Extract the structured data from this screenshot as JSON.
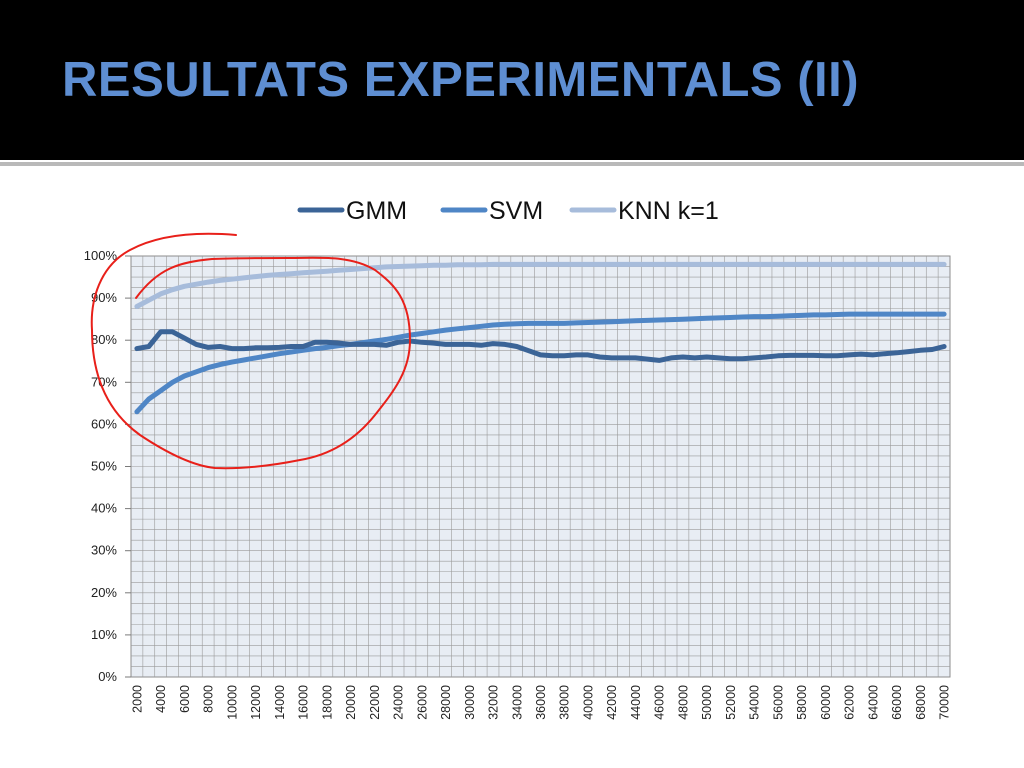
{
  "slide": {
    "title": "RESULTATS EXPERIMENTALS (II)"
  },
  "colors": {
    "header_bg": "#000000",
    "title": "#5e8ed2",
    "gmm": "#3b6497",
    "svm": "#4f86c6",
    "knn": "#a7bcdb",
    "plot_bg": "#e8edf4",
    "grid": "#9a9a9a",
    "annotation": "#e8201a"
  },
  "chart_data": {
    "type": "line",
    "title": "",
    "xlabel": "",
    "ylabel": "",
    "legend_position": "top-center",
    "grid": true,
    "ylim": [
      0,
      100
    ],
    "yticks": [
      "0%",
      "10%",
      "20%",
      "30%",
      "40%",
      "50%",
      "60%",
      "70%",
      "80%",
      "90%",
      "100%"
    ],
    "categories": [
      "2000",
      "3000",
      "4000",
      "5000",
      "6000",
      "7000",
      "8000",
      "9000",
      "10000",
      "11000",
      "12000",
      "13000",
      "14000",
      "15000",
      "16000",
      "17000",
      "18000",
      "19000",
      "20000",
      "21000",
      "22000",
      "23000",
      "24000",
      "25000",
      "26000",
      "27000",
      "28000",
      "29000",
      "30000",
      "31000",
      "32000",
      "33000",
      "34000",
      "35000",
      "36000",
      "37000",
      "38000",
      "39000",
      "40000",
      "41000",
      "42000",
      "43000",
      "44000",
      "45000",
      "46000",
      "47000",
      "48000",
      "49000",
      "50000",
      "51000",
      "52000",
      "53000",
      "54000",
      "55000",
      "56000",
      "57000",
      "58000",
      "59000",
      "60000",
      "61000",
      "62000",
      "63000",
      "64000",
      "65000",
      "66000",
      "67000",
      "68000",
      "69000",
      "70000"
    ],
    "xtick_labels": [
      "2000",
      "4000",
      "6000",
      "8000",
      "10000",
      "12000",
      "14000",
      "16000",
      "18000",
      "20000",
      "22000",
      "24000",
      "26000",
      "28000",
      "30000",
      "32000",
      "34000",
      "36000",
      "38000",
      "40000",
      "42000",
      "44000",
      "46000",
      "48000",
      "50000",
      "52000",
      "54000",
      "56000",
      "58000",
      "60000",
      "62000",
      "64000",
      "66000",
      "68000",
      "70000"
    ],
    "series": [
      {
        "name": "GMM",
        "values": [
          78,
          78.5,
          82,
          82,
          80.5,
          79,
          78.3,
          78.5,
          78,
          78,
          78.2,
          78.2,
          78.3,
          78.5,
          78.5,
          79.5,
          79.5,
          79.3,
          79,
          79,
          79,
          78.8,
          79.5,
          79.8,
          79.5,
          79.3,
          79,
          79,
          79,
          78.8,
          79.2,
          79,
          78.5,
          77.5,
          76.5,
          76.3,
          76.3,
          76.5,
          76.5,
          76,
          75.8,
          75.8,
          75.8,
          75.5,
          75.2,
          75.8,
          76,
          75.8,
          76,
          75.8,
          75.6,
          75.6,
          75.8,
          76,
          76.3,
          76.4,
          76.4,
          76.4,
          76.3,
          76.3,
          76.5,
          76.7,
          76.5,
          76.8,
          77,
          77.3,
          77.6,
          77.8,
          78.5
        ]
      },
      {
        "name": "SVM",
        "values": [
          63,
          66,
          68,
          70,
          71.5,
          72.5,
          73.5,
          74.2,
          74.8,
          75.3,
          75.8,
          76.3,
          76.8,
          77.2,
          77.6,
          78,
          78.3,
          78.7,
          79,
          79.4,
          79.8,
          80.2,
          80.7,
          81.2,
          81.6,
          82,
          82.4,
          82.7,
          83,
          83.3,
          83.6,
          83.8,
          83.9,
          84,
          84,
          84,
          84,
          84.1,
          84.2,
          84.3,
          84.4,
          84.5,
          84.6,
          84.7,
          84.8,
          84.9,
          85,
          85.1,
          85.2,
          85.3,
          85.4,
          85.5,
          85.6,
          85.6,
          85.7,
          85.8,
          85.9,
          86,
          86,
          86.1,
          86.2,
          86.2,
          86.2,
          86.2,
          86.2,
          86.2,
          86.2,
          86.2,
          86.2
        ]
      },
      {
        "name": "KNN k=1",
        "values": [
          88,
          89.5,
          91,
          92,
          92.8,
          93.3,
          93.8,
          94.2,
          94.5,
          94.8,
          95.1,
          95.4,
          95.6,
          95.8,
          96,
          96.2,
          96.4,
          96.6,
          96.8,
          97,
          97.2,
          97.4,
          97.5,
          97.6,
          97.7,
          97.8,
          97.8,
          97.9,
          97.9,
          97.9,
          98,
          98,
          98,
          98,
          98,
          98,
          98,
          98,
          98,
          98,
          98,
          98,
          98,
          98,
          98,
          98,
          98,
          98,
          98,
          98,
          98,
          98,
          98,
          98,
          98,
          98,
          98,
          98,
          98,
          98,
          98,
          98,
          98,
          98,
          98,
          98,
          98,
          98,
          98
        ]
      }
    ]
  }
}
